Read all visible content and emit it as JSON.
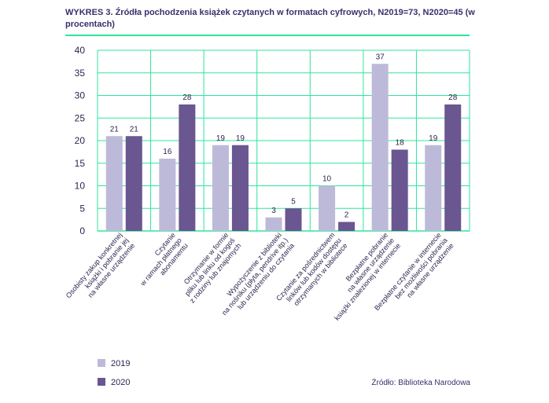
{
  "title": "WYKRES 3. Źródła pochodzenia książek czytanych w formatach cyfrowych, N2019=73, N2020=45 (w procentach)",
  "source": "Źródło: Biblioteka Narodowa",
  "colors": {
    "series2019": "#bdbad9",
    "series2020": "#6a5690",
    "grid": "#2ee59d",
    "text": "#2e2550"
  },
  "chart_data": {
    "type": "bar",
    "title": "WYKRES 3. Źródła pochodzenia książek czytanych w formatach cyfrowych, N2019=73, N2020=45 (w procentach)",
    "ylim": [
      0,
      40
    ],
    "yticks": [
      0,
      5,
      10,
      15,
      20,
      25,
      30,
      35,
      40
    ],
    "grid": true,
    "legend": "bottom-left",
    "categories": [
      [
        "Osobisty zakup konkretnej",
        "książki i pobranie jej",
        "na własne urządzenie"
      ],
      [
        "Czytanie",
        "w ramach płatnego",
        "abonamentu"
      ],
      [
        "Otrzymanie w formie",
        "pliku lub linku od kogoś",
        "z rodziny lub znajomych"
      ],
      [
        "Wypożyczenie z biblioteki",
        "na nośniku (płyta, pendrive itp.)",
        "lub urządzeniu do czytania"
      ],
      [
        "Czytanie za pośrednictwem",
        "linków lub kodów dostępu",
        "otrzymanych w bibliotece"
      ],
      [
        "Bezpłatne pobranie",
        "na własne urządzenie",
        "książki znalezionej w internecie"
      ],
      [
        "Bezpłatne czytanie w internecie",
        "bez możliwości pobrania",
        "na własne urządzenie"
      ]
    ],
    "series": [
      {
        "name": "2019",
        "values": [
          21,
          16,
          19,
          3,
          10,
          37,
          19
        ]
      },
      {
        "name": "2020",
        "values": [
          21,
          28,
          19,
          5,
          2,
          18,
          28
        ]
      }
    ]
  }
}
